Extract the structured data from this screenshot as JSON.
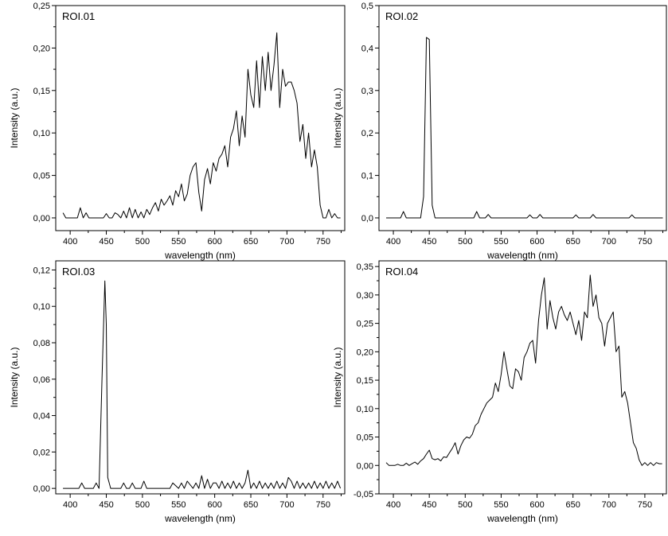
{
  "chart_data": [
    {
      "type": "line",
      "title": "ROI.01",
      "xlabel": "wavelength (nm)",
      "ylabel": "Intensity (a.u.)",
      "xlim": [
        380,
        780
      ],
      "ylim": [
        -0.015,
        0.25
      ],
      "xticks": [
        400,
        450,
        500,
        550,
        600,
        650,
        700,
        750
      ],
      "xtick_labels": [
        "400",
        "450",
        "500",
        "550",
        "600",
        "650",
        "700",
        "750"
      ],
      "yticks": [
        0,
        0.05,
        0.1,
        0.15,
        0.2,
        0.25
      ],
      "ytick_labels": [
        "0,00",
        "0,05",
        "0,10",
        "0,15",
        "0,20",
        "0,25"
      ],
      "grid": false,
      "series": [
        {
          "x": [
            390,
            394,
            398,
            402,
            406,
            410,
            414,
            418,
            422,
            426,
            430,
            434,
            438,
            442,
            446,
            450,
            454,
            458,
            462,
            466,
            470,
            474,
            478,
            482,
            486,
            490,
            494,
            498,
            502,
            506,
            510,
            514,
            518,
            522,
            526,
            530,
            534,
            538,
            542,
            546,
            550,
            554,
            558,
            562,
            566,
            570,
            574,
            578,
            582,
            586,
            590,
            594,
            598,
            602,
            606,
            610,
            614,
            618,
            622,
            626,
            630,
            634,
            638,
            642,
            646,
            650,
            654,
            658,
            662,
            666,
            670,
            674,
            678,
            682,
            686,
            690,
            694,
            698,
            702,
            706,
            710,
            714,
            718,
            722,
            726,
            730,
            734,
            738,
            742,
            746,
            750,
            754,
            758,
            762,
            766,
            770,
            774
          ],
          "y": [
            0.006,
            0,
            0,
            0,
            0,
            0,
            0.012,
            0,
            0.006,
            0,
            0,
            0,
            0,
            0,
            0,
            0.005,
            0,
            0,
            0.006,
            0.004,
            0,
            0.008,
            0,
            0.012,
            0,
            0.01,
            0,
            0.007,
            0,
            0.01,
            0.004,
            0.012,
            0.018,
            0.008,
            0.022,
            0.015,
            0.02,
            0.026,
            0.015,
            0.032,
            0.025,
            0.04,
            0.02,
            0.028,
            0.05,
            0.06,
            0.065,
            0.03,
            0.008,
            0.045,
            0.058,
            0.04,
            0.065,
            0.055,
            0.07,
            0.075,
            0.085,
            0.06,
            0.095,
            0.105,
            0.126,
            0.085,
            0.12,
            0.095,
            0.175,
            0.145,
            0.13,
            0.185,
            0.13,
            0.19,
            0.15,
            0.195,
            0.15,
            0.18,
            0.218,
            0.13,
            0.175,
            0.155,
            0.16,
            0.16,
            0.15,
            0.135,
            0.09,
            0.11,
            0.07,
            0.1,
            0.06,
            0.08,
            0.06,
            0.015,
            0,
            0,
            0.01,
            0,
            0.005,
            0,
            0
          ]
        }
      ]
    },
    {
      "type": "line",
      "title": "ROI.02",
      "xlabel": "wavelength (nm)",
      "ylabel": "Intensity (a.u.)",
      "xlim": [
        380,
        780
      ],
      "ylim": [
        -0.03,
        0.5
      ],
      "xticks": [
        400,
        450,
        500,
        550,
        600,
        650,
        700,
        750
      ],
      "xtick_labels": [
        "400",
        "450",
        "500",
        "550",
        "600",
        "650",
        "700",
        "750"
      ],
      "yticks": [
        0,
        0.1,
        0.2,
        0.3,
        0.4,
        0.5
      ],
      "ytick_labels": [
        "0,0",
        "0,1",
        "0,2",
        "0,3",
        "0,4",
        "0,5"
      ],
      "grid": false,
      "series": [
        {
          "x": [
            390,
            405,
            410,
            414,
            418,
            438,
            442,
            446,
            450,
            454,
            458,
            462,
            512,
            516,
            520,
            528,
            532,
            536,
            586,
            590,
            594,
            600,
            604,
            608,
            650,
            654,
            658,
            674,
            678,
            682,
            728,
            732,
            736,
            775
          ],
          "y": [
            0,
            0,
            0,
            0.015,
            0,
            0,
            0.05,
            0.425,
            0.42,
            0.03,
            0,
            0,
            0,
            0.015,
            0,
            0,
            0.008,
            0,
            0,
            0.007,
            0,
            0,
            0.008,
            0,
            0,
            0.007,
            0,
            0,
            0.008,
            0,
            0,
            0.007,
            0,
            0
          ]
        }
      ]
    },
    {
      "type": "line",
      "title": "ROI.03",
      "xlabel": "wavelength (nm)",
      "ylabel": "Intensity (a.u.)",
      "xlim": [
        380,
        780
      ],
      "ylim": [
        -0.003,
        0.125
      ],
      "xticks": [
        400,
        450,
        500,
        550,
        600,
        650,
        700,
        750
      ],
      "xtick_labels": [
        "400",
        "450",
        "500",
        "550",
        "600",
        "650",
        "700",
        "750"
      ],
      "yticks": [
        0,
        0.02,
        0.04,
        0.06,
        0.08,
        0.1,
        0.12
      ],
      "ytick_labels": [
        "0,00",
        "0,02",
        "0,04",
        "0,06",
        "0,08",
        "0,10",
        "0,12"
      ],
      "grid": false,
      "series": [
        {
          "x": [
            390,
            412,
            416,
            420,
            432,
            436,
            440,
            444,
            448,
            450,
            452,
            456,
            460,
            470,
            474,
            478,
            482,
            486,
            490,
            498,
            502,
            506,
            538,
            542,
            550,
            554,
            558,
            562,
            570,
            574,
            578,
            582,
            586,
            590,
            594,
            598,
            602,
            606,
            610,
            614,
            618,
            622,
            626,
            630,
            634,
            638,
            642,
            646,
            650,
            654,
            658,
            662,
            666,
            670,
            674,
            678,
            682,
            686,
            690,
            694,
            698,
            702,
            706,
            710,
            714,
            718,
            722,
            726,
            730,
            734,
            738,
            742,
            746,
            750,
            754,
            758,
            762,
            766,
            770,
            774
          ],
          "y": [
            0,
            0,
            0.003,
            0,
            0,
            0.003,
            0,
            0.06,
            0.114,
            0.09,
            0.006,
            0,
            0,
            0,
            0.003,
            0,
            0,
            0.003,
            0,
            0,
            0.004,
            0,
            0,
            0.003,
            0,
            0.003,
            0,
            0.004,
            0,
            0.003,
            0,
            0.007,
            0,
            0.005,
            0,
            0.003,
            0.003,
            0,
            0.004,
            0,
            0.003,
            0,
            0.004,
            0,
            0.003,
            0,
            0.003,
            0.01,
            0,
            0.003,
            0,
            0.004,
            0,
            0.003,
            0,
            0.003,
            0,
            0.004,
            0,
            0.003,
            0,
            0.006,
            0.004,
            0,
            0.004,
            0,
            0.003,
            0,
            0.003,
            0,
            0.004,
            0,
            0.003,
            0,
            0.004,
            0,
            0.003,
            0,
            0.004,
            0
          ]
        }
      ]
    },
    {
      "type": "line",
      "title": "ROI.04",
      "xlabel": "wavelength (nm)",
      "ylabel": "Intensity (a.u.)",
      "xlim": [
        380,
        780
      ],
      "ylim": [
        -0.05,
        0.36
      ],
      "xticks": [
        400,
        450,
        500,
        550,
        600,
        650,
        700,
        750
      ],
      "xtick_labels": [
        "400",
        "450",
        "500",
        "550",
        "600",
        "650",
        "700",
        "750"
      ],
      "yticks": [
        -0.05,
        0,
        0.05,
        0.1,
        0.15,
        0.2,
        0.25,
        0.3,
        0.35
      ],
      "ytick_labels": [
        "-0,05",
        "0,00",
        "0,05",
        "0,10",
        "0,15",
        "0,20",
        "0,25",
        "0,30",
        "0,35"
      ],
      "grid": false,
      "series": [
        {
          "x": [
            390,
            394,
            398,
            402,
            406,
            410,
            414,
            418,
            422,
            426,
            430,
            434,
            438,
            442,
            446,
            450,
            454,
            458,
            462,
            466,
            470,
            474,
            478,
            482,
            486,
            490,
            494,
            498,
            502,
            506,
            510,
            514,
            518,
            522,
            526,
            530,
            534,
            538,
            542,
            546,
            550,
            554,
            558,
            562,
            566,
            570,
            574,
            578,
            582,
            586,
            590,
            594,
            598,
            602,
            606,
            610,
            614,
            618,
            622,
            626,
            630,
            634,
            638,
            642,
            646,
            650,
            654,
            658,
            662,
            666,
            670,
            674,
            678,
            682,
            686,
            690,
            694,
            698,
            702,
            706,
            710,
            714,
            718,
            722,
            726,
            730,
            734,
            738,
            742,
            746,
            750,
            754,
            758,
            762,
            766,
            770,
            774
          ],
          "y": [
            0.005,
            0,
            0,
            0,
            0.002,
            0,
            0,
            0.004,
            0,
            0.003,
            0.006,
            0.002,
            0.008,
            0.012,
            0.02,
            0.027,
            0.012,
            0.01,
            0.012,
            0.008,
            0.015,
            0.014,
            0.022,
            0.03,
            0.04,
            0.02,
            0.035,
            0.045,
            0.05,
            0.048,
            0.055,
            0.07,
            0.075,
            0.09,
            0.1,
            0.11,
            0.115,
            0.12,
            0.145,
            0.13,
            0.16,
            0.2,
            0.17,
            0.14,
            0.135,
            0.17,
            0.165,
            0.15,
            0.19,
            0.2,
            0.215,
            0.22,
            0.18,
            0.255,
            0.3,
            0.33,
            0.24,
            0.29,
            0.26,
            0.24,
            0.27,
            0.28,
            0.265,
            0.255,
            0.27,
            0.25,
            0.23,
            0.255,
            0.22,
            0.27,
            0.26,
            0.335,
            0.28,
            0.3,
            0.26,
            0.25,
            0.21,
            0.25,
            0.26,
            0.27,
            0.2,
            0.21,
            0.12,
            0.13,
            0.11,
            0.075,
            0.04,
            0.03,
            0.01,
            0,
            0.005,
            0,
            0.005,
            0,
            0.005,
            0.003,
            0.003
          ]
        }
      ]
    }
  ]
}
